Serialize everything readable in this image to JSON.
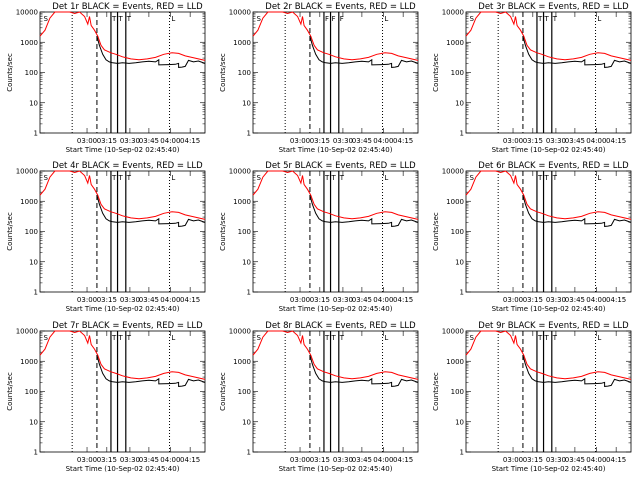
{
  "figure": {
    "detector_ids": [
      "Det 1r",
      "Det 2r",
      "Det 3r",
      "Det 4r",
      "Det 5r",
      "Det 6r",
      "Det 7r",
      "Det 8r",
      "Det 9r"
    ]
  },
  "colors": {
    "events": "#000000",
    "lld": "#ff0000",
    "background": "#ffffff"
  },
  "chart_data": [
    {
      "type": "line",
      "title": "Det 1r BLACK = Events, RED = LLD",
      "xlabel": "Start Time (10-Sep-02 02:45:40)",
      "ylabel": "Counts/sec",
      "yscale": "log",
      "ylim": [
        1,
        10000
      ],
      "xlim": [
        0,
        100
      ],
      "xtick_labels": [
        "03:00",
        "03:15",
        "03:30",
        "03:45",
        "04:00",
        "04:15"
      ],
      "ytick_labels": [
        "1",
        "10",
        "100",
        "1000",
        "10000"
      ],
      "series": [
        {
          "name": "Events",
          "color": "#000000"
        },
        {
          "name": "LLD",
          "color": "#ff0000"
        }
      ],
      "attenuator_marks": [
        "S",
        "T",
        "T",
        "T",
        "L"
      ]
    },
    {
      "type": "line",
      "title": "Det 2r BLACK = Events, RED = LLD",
      "xlabel": "Start Time (10-Sep-02 02:45:40)",
      "ylabel": "Counts/sec",
      "yscale": "log",
      "ylim": [
        1,
        10000
      ],
      "xlim": [
        0,
        100
      ],
      "xtick_labels": [
        "03:00",
        "03:15",
        "03:30",
        "03:45",
        "04:00",
        "04:15"
      ],
      "ytick_labels": [
        "1",
        "10",
        "100",
        "1000",
        "10000"
      ],
      "series": [
        {
          "name": "Events",
          "color": "#000000"
        },
        {
          "name": "LLD",
          "color": "#ff0000"
        }
      ],
      "attenuator_marks": [
        "S",
        "F",
        "F",
        "F",
        "L"
      ]
    },
    {
      "type": "line",
      "title": "Det 3r BLACK = Events, RED = LLD",
      "xlabel": "Start Time (10-Sep-02 02:45:40)",
      "ylabel": "Counts/sec",
      "yscale": "log",
      "ylim": [
        1,
        10000
      ],
      "xlim": [
        0,
        100
      ],
      "xtick_labels": [
        "03:00",
        "03:15",
        "03:30",
        "03:45",
        "04:00",
        "04:15"
      ],
      "ytick_labels": [
        "1",
        "10",
        "100",
        "1000",
        "10000"
      ],
      "series": [
        {
          "name": "Events",
          "color": "#000000"
        },
        {
          "name": "LLD",
          "color": "#ff0000"
        }
      ],
      "attenuator_marks": [
        "S",
        "T",
        "T",
        "T",
        "L"
      ]
    },
    {
      "type": "line",
      "title": "Det 4r BLACK = Events, RED = LLD",
      "xlabel": "Start Time (10-Sep-02 02:45:40)",
      "ylabel": "Counts/sec",
      "yscale": "log",
      "ylim": [
        1,
        10000
      ],
      "xlim": [
        0,
        100
      ],
      "xtick_labels": [
        "03:00",
        "03:15",
        "03:30",
        "03:45",
        "04:00",
        "04:15"
      ],
      "ytick_labels": [
        "1",
        "10",
        "100",
        "1000",
        "10000"
      ],
      "series": [
        {
          "name": "Events",
          "color": "#000000"
        },
        {
          "name": "LLD",
          "color": "#ff0000"
        }
      ],
      "attenuator_marks": [
        "S",
        "T",
        "T",
        "T",
        "L"
      ]
    },
    {
      "type": "line",
      "title": "Det 5r BLACK = Events, RED = LLD",
      "xlabel": "Start Time (10-Sep-02 02:45:40)",
      "ylabel": "Counts/sec",
      "yscale": "log",
      "ylim": [
        1,
        10000
      ],
      "xlim": [
        0,
        100
      ],
      "xtick_labels": [
        "03:00",
        "03:15",
        "03:30",
        "03:45",
        "04:00",
        "04:15"
      ],
      "ytick_labels": [
        "1",
        "10",
        "100",
        "1000",
        "10000"
      ],
      "series": [
        {
          "name": "Events",
          "color": "#000000"
        },
        {
          "name": "LLD",
          "color": "#ff0000"
        }
      ],
      "attenuator_marks": [
        "S",
        "T",
        "T",
        "T",
        "L"
      ]
    },
    {
      "type": "line",
      "title": "Det 6r BLACK = Events, RED = LLD",
      "xlabel": "Start Time (10-Sep-02 02:45:40)",
      "ylabel": "Counts/sec",
      "yscale": "log",
      "ylim": [
        1,
        10000
      ],
      "xlim": [
        0,
        100
      ],
      "xtick_labels": [
        "03:00",
        "03:15",
        "03:30",
        "03:45",
        "04:00",
        "04:15"
      ],
      "ytick_labels": [
        "1",
        "10",
        "100",
        "1000",
        "10000"
      ],
      "series": [
        {
          "name": "Events",
          "color": "#000000"
        },
        {
          "name": "LLD",
          "color": "#ff0000"
        }
      ],
      "attenuator_marks": [
        "S",
        "T",
        "T",
        "T",
        "L"
      ]
    },
    {
      "type": "line",
      "title": "Det 7r BLACK = Events, RED = LLD",
      "xlabel": "Start Time (10-Sep-02 02:45:40)",
      "ylabel": "Counts/sec",
      "yscale": "log",
      "ylim": [
        1,
        10000
      ],
      "xlim": [
        0,
        100
      ],
      "xtick_labels": [
        "03:00",
        "03:15",
        "03:30",
        "03:45",
        "04:00",
        "04:15"
      ],
      "ytick_labels": [
        "1",
        "10",
        "100",
        "1000",
        "10000"
      ],
      "series": [
        {
          "name": "Events",
          "color": "#000000"
        },
        {
          "name": "LLD",
          "color": "#ff0000"
        }
      ],
      "attenuator_marks": [
        "S",
        "T",
        "T",
        "T",
        "L"
      ]
    },
    {
      "type": "line",
      "title": "Det 8r BLACK = Events, RED = LLD",
      "xlabel": "Start Time (10-Sep-02 02:45:40)",
      "ylabel": "Counts/sec",
      "yscale": "log",
      "ylim": [
        1,
        10000
      ],
      "xlim": [
        0,
        100
      ],
      "xtick_labels": [
        "03:00",
        "03:15",
        "03:30",
        "03:45",
        "04:00",
        "04:15"
      ],
      "ytick_labels": [
        "1",
        "10",
        "100",
        "1000",
        "10000"
      ],
      "series": [
        {
          "name": "Events",
          "color": "#000000"
        },
        {
          "name": "LLD",
          "color": "#ff0000"
        }
      ],
      "attenuator_marks": [
        "S",
        "T",
        "T",
        "T",
        "L"
      ]
    },
    {
      "type": "line",
      "title": "Det 9r BLACK = Events, RED = LLD",
      "xlabel": "Start Time (10-Sep-02 02:45:40)",
      "ylabel": "Counts/sec",
      "yscale": "log",
      "ylim": [
        1,
        10000
      ],
      "xlim": [
        0,
        100
      ],
      "xtick_labels": [
        "03:00",
        "03:15",
        "03:30",
        "03:45",
        "04:00",
        "04:15"
      ],
      "ytick_labels": [
        "1",
        "10",
        "100",
        "1000",
        "10000"
      ],
      "series": [
        {
          "name": "Events",
          "color": "#000000"
        },
        {
          "name": "LLD",
          "color": "#ff0000"
        }
      ],
      "attenuator_marks": [
        "S",
        "T",
        "T",
        "T",
        "L"
      ]
    }
  ]
}
